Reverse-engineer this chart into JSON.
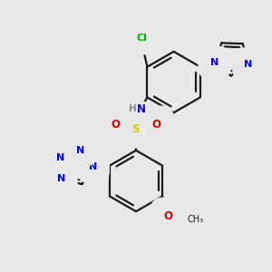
{
  "bg_color": "#e8e8e8",
  "bond_color": "#1a1a1a",
  "lw": 1.6,
  "figsize": [
    3.0,
    3.0
  ],
  "dpi": 100,
  "colors": {
    "N": "#0000cc",
    "O": "#cc0000",
    "S": "#cccc00",
    "Cl": "#00aa00",
    "H": "#888888",
    "C": "#1a1a1a"
  }
}
